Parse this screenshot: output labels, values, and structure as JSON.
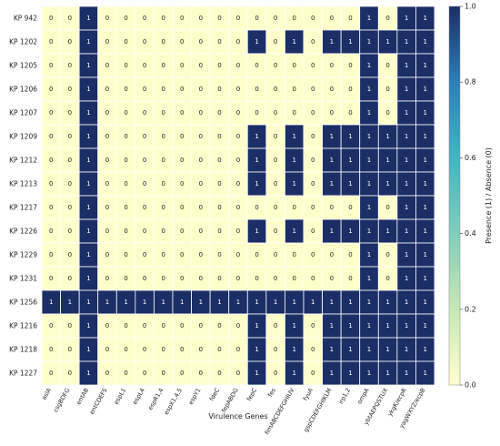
{
  "chart_data": {
    "type": "heatmap",
    "xlabel": "Virulence Genes",
    "colorbar_label": "Presence (1) / Absence (0)",
    "colorbar_ticks": [
      "0.0",
      "0.2",
      "0.4",
      "0.6",
      "0.8",
      "1.0"
    ],
    "value_range": [
      0,
      1
    ],
    "color_low": "#ffffcc",
    "color_high": "#1b2e66",
    "columns": [
      "aslA",
      "csgBDFG",
      "entAB",
      "entCDEFS",
      "espL1",
      "espL4",
      "espR1,4",
      "espX1,4,5",
      "espY1",
      "fdeC",
      "fepABDG",
      "fepC",
      "fes",
      "fimABCDEFGHIUV",
      "fyuA",
      "gspCDEFGHIKLM",
      "irp1,2",
      "ompA",
      "ybtAEPQSTUX",
      "ykgK/ecpR",
      "yagWXYZ/ecpB"
    ],
    "rows": [
      "KP 942",
      "KP 1202",
      "KP 1205",
      "KP 1206",
      "KP 1207",
      "KP 1209",
      "KP 1212",
      "KP 1213",
      "KP 1217",
      "KP 1226",
      "KP 1229",
      "KP 1231",
      "KP 1256",
      "KP 1216",
      "KP 1218",
      "KP 1227"
    ],
    "values": [
      [
        0,
        0,
        1,
        0,
        0,
        0,
        0,
        0,
        0,
        0,
        0,
        0,
        0,
        0,
        0,
        0,
        0,
        1,
        0,
        1,
        1
      ],
      [
        0,
        0,
        1,
        0,
        0,
        0,
        0,
        0,
        0,
        0,
        0,
        1,
        0,
        1,
        0,
        1,
        1,
        1,
        1,
        1,
        1
      ],
      [
        0,
        0,
        1,
        0,
        0,
        0,
        0,
        0,
        0,
        0,
        0,
        0,
        0,
        0,
        0,
        0,
        0,
        1,
        0,
        1,
        1
      ],
      [
        0,
        0,
        1,
        0,
        0,
        0,
        0,
        0,
        0,
        0,
        0,
        0,
        0,
        0,
        0,
        0,
        0,
        1,
        0,
        1,
        1
      ],
      [
        0,
        0,
        1,
        0,
        0,
        0,
        0,
        0,
        0,
        0,
        0,
        0,
        0,
        0,
        0,
        0,
        0,
        1,
        0,
        1,
        1
      ],
      [
        0,
        0,
        1,
        0,
        0,
        0,
        0,
        0,
        0,
        0,
        0,
        1,
        0,
        1,
        0,
        1,
        1,
        1,
        1,
        1,
        1
      ],
      [
        0,
        0,
        1,
        0,
        0,
        0,
        0,
        0,
        0,
        0,
        0,
        1,
        0,
        1,
        0,
        1,
        1,
        1,
        1,
        1,
        1
      ],
      [
        0,
        0,
        1,
        0,
        0,
        0,
        0,
        0,
        0,
        0,
        0,
        1,
        0,
        1,
        0,
        1,
        1,
        1,
        1,
        1,
        1
      ],
      [
        0,
        0,
        1,
        0,
        0,
        0,
        0,
        0,
        0,
        0,
        0,
        0,
        0,
        0,
        0,
        0,
        0,
        1,
        0,
        1,
        1
      ],
      [
        0,
        0,
        1,
        0,
        0,
        0,
        0,
        0,
        0,
        0,
        0,
        1,
        0,
        1,
        0,
        1,
        1,
        1,
        1,
        1,
        1
      ],
      [
        0,
        0,
        1,
        0,
        0,
        0,
        0,
        0,
        0,
        0,
        0,
        0,
        0,
        0,
        0,
        0,
        0,
        1,
        0,
        1,
        1
      ],
      [
        0,
        0,
        1,
        0,
        0,
        0,
        0,
        0,
        0,
        0,
        0,
        0,
        0,
        0,
        0,
        0,
        0,
        1,
        0,
        1,
        1
      ],
      [
        1,
        1,
        1,
        1,
        1,
        1,
        1,
        1,
        1,
        1,
        1,
        1,
        1,
        1,
        1,
        1,
        1,
        1,
        1,
        1,
        1
      ],
      [
        0,
        0,
        1,
        0,
        0,
        0,
        0,
        0,
        0,
        0,
        0,
        1,
        0,
        1,
        0,
        1,
        1,
        1,
        1,
        1,
        1
      ],
      [
        0,
        0,
        1,
        0,
        0,
        0,
        0,
        0,
        0,
        0,
        0,
        1,
        0,
        1,
        0,
        1,
        1,
        1,
        1,
        1,
        1
      ],
      [
        0,
        0,
        1,
        0,
        0,
        0,
        0,
        0,
        0,
        0,
        0,
        1,
        0,
        1,
        0,
        1,
        1,
        1,
        1,
        1,
        1
      ]
    ]
  }
}
